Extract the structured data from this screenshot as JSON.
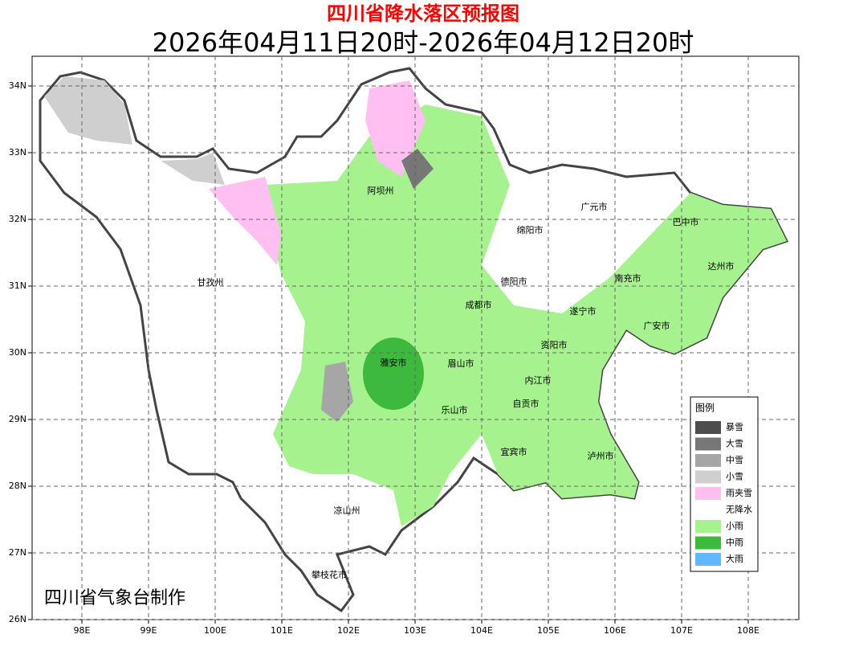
{
  "header": {
    "title": "四川省降水落区预报图",
    "subtitle": "2026年04月11日20时-2026年04月12日20时"
  },
  "axes": {
    "lon_ticks": [
      "98E",
      "99E",
      "100E",
      "101E",
      "102E",
      "103E",
      "104E",
      "105E",
      "106E",
      "107E",
      "108E"
    ],
    "lat_ticks": [
      "34N",
      "33N",
      "32N",
      "31N",
      "30N",
      "29N",
      "28N",
      "27N",
      "26N"
    ]
  },
  "cities": [
    "阿坝州",
    "广元市",
    "巴中市",
    "绵阳市",
    "达州市",
    "南充市",
    "甘孜州",
    "德阳市",
    "成都市",
    "遂宁市",
    "广安市",
    "资阳市",
    "雅安市",
    "眉山市",
    "内江市",
    "自贡市",
    "乐山市",
    "宜宾市",
    "泸州市",
    "凉山州",
    "攀枝花市"
  ],
  "legend": {
    "title": "图例",
    "items": [
      {
        "label": "暴雪",
        "color": "#4d4d4d"
      },
      {
        "label": "大雪",
        "color": "#777777"
      },
      {
        "label": "中雪",
        "color": "#a6a6a6"
      },
      {
        "label": "小雪",
        "color": "#cfcfcf"
      },
      {
        "label": "雨夹雪",
        "color": "#ffbff0"
      },
      {
        "label": "无降水",
        "color": "#ffffff"
      },
      {
        "label": "小雨",
        "color": "#a6f28f"
      },
      {
        "label": "中雨",
        "color": "#3dba3d"
      },
      {
        "label": "大雨",
        "color": "#61b8ff"
      }
    ]
  },
  "credit": "四川省气象台制作"
}
